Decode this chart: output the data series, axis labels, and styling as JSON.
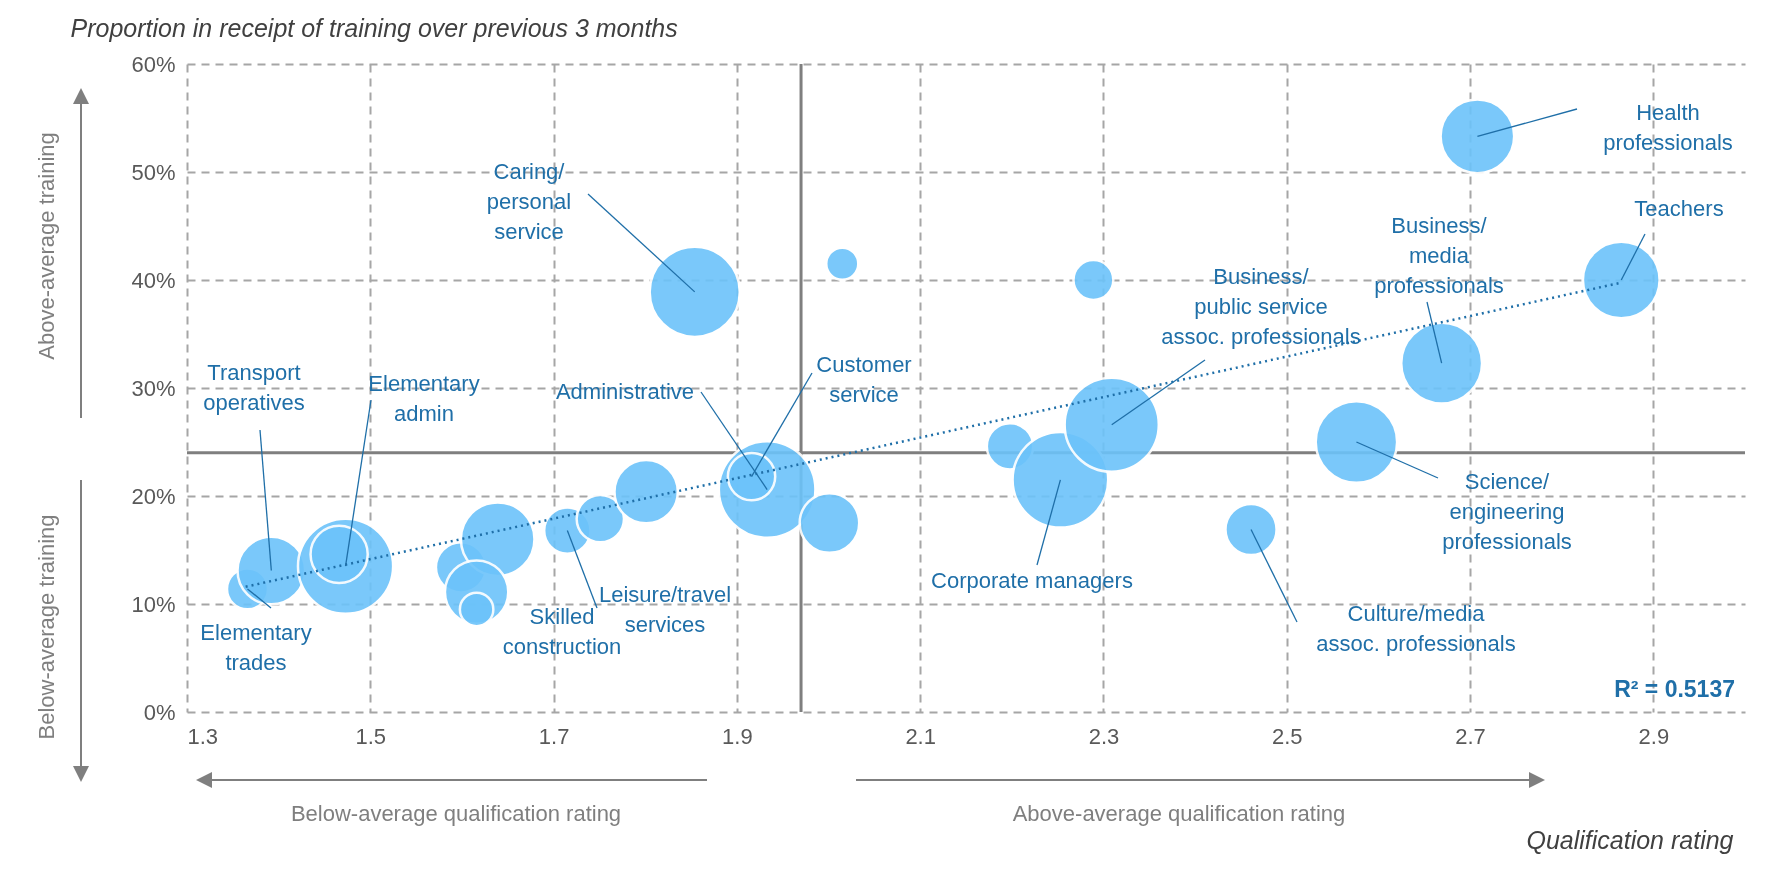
{
  "chart_data": {
    "type": "bubble",
    "ylabel": "Proportion in receipt of training over previous 3 months",
    "xlabel": "Qualification rating",
    "xlim": [
      1.3,
      3.0
    ],
    "xticks": [
      1.3,
      1.5,
      1.7,
      1.9,
      2.1,
      2.3,
      2.5,
      2.7,
      2.9
    ],
    "ylim": [
      0,
      60
    ],
    "yticks": [
      {
        "value": 0,
        "label": "0%"
      },
      {
        "value": 10,
        "label": "10%"
      },
      {
        "value": 20,
        "label": "20%"
      },
      {
        "value": 30,
        "label": "30%"
      },
      {
        "value": 40,
        "label": "40%"
      },
      {
        "value": 50,
        "label": "50%"
      },
      {
        "value": 60,
        "label": "60%"
      }
    ],
    "grid": true,
    "series": [
      {
        "color": "#6cc3fa",
        "x": [
          1.366,
          1.392,
          1.473,
          1.466,
          1.599,
          1.639,
          1.616,
          1.616,
          1.715,
          1.751,
          1.801,
          1.854,
          2.015,
          1.933,
          1.916,
          2.001,
          2.198,
          2.253,
          2.289,
          2.309,
          2.461,
          2.576,
          2.669,
          2.708,
          2.865
        ],
        "values": [
          11.4,
          13.1,
          13.5,
          14.6,
          13.4,
          16.0,
          11.1,
          9.5,
          16.8,
          17.9,
          20.4,
          38.9,
          41.5,
          20.6,
          21.8,
          17.5,
          24.6,
          21.5,
          40.0,
          26.6,
          16.9,
          25.0,
          32.3,
          53.3,
          40.0
        ],
        "sizes": [
          0.18,
          0.49,
          0.97,
          0.35,
          0.27,
          0.58,
          0.43,
          0.12,
          0.23,
          0.24,
          0.43,
          0.87,
          0.11,
          1,
          0.24,
          0.38,
          0.23,
          0.98,
          0.17,
          0.95,
          0.28,
          0.71,
          0.7,
          0.58,
          0.63
        ]
      },
      {
        "type": "line",
        "color": "#1f6fa8",
        "line_style": "dotted",
        "marker": "none",
        "x": [
          1.364,
          2.862
        ],
        "values": [
          11.6,
          39.7
        ]
      }
    ],
    "ref_lines": [
      {
        "axis": "x",
        "value": 1.97,
        "color": "#7f7f7f"
      },
      {
        "axis": "y",
        "value": 24,
        "color": "#7f7f7f"
      }
    ],
    "annotations": [
      "Above-average training",
      "Below-average training",
      "Below-average qualification rating",
      "Above-average qualification rating",
      "R² = 0.5137",
      "Skilled\nconstruction",
      {
        "text": "Health\nprofessionals",
        "x": 2.708,
        "y": 53.3
      },
      {
        "text": "Teachers",
        "x": 2.865,
        "y": 40.0
      },
      {
        "text": "Business/\nmedia\nprofessionals",
        "x": 2.669,
        "y": 32.3
      },
      {
        "text": "Business/\npublic service\nassoc. professionals",
        "x": 2.309,
        "y": 26.6
      },
      {
        "text": "Caring/\npersonal\nservice",
        "x": 1.854,
        "y": 38.9
      },
      {
        "text": "Transport\noperatives",
        "x": 1.392,
        "y": 13.1
      },
      {
        "text": "Elementary\nadmin",
        "x": 1.473,
        "y": 13.5
      },
      {
        "text": "Administrative",
        "x": 1.933,
        "y": 20.6
      },
      {
        "text": "Customer\nservice",
        "x": 1.916,
        "y": 21.8
      },
      {
        "text": "Elementary\ntrades",
        "x": 1.366,
        "y": 11.4
      },
      {
        "text": "Leisure/travel\nservices",
        "x": 1.715,
        "y": 16.8
      },
      {
        "text": "Corporate managers",
        "x": 2.253,
        "y": 21.5
      },
      {
        "text": "Science/\nengineering\nprofessionals",
        "x": 2.576,
        "y": 25.0
      },
      {
        "text": "Culture/media\nassoc. professionals",
        "x": 2.461,
        "y": 16.9
      }
    ]
  }
}
